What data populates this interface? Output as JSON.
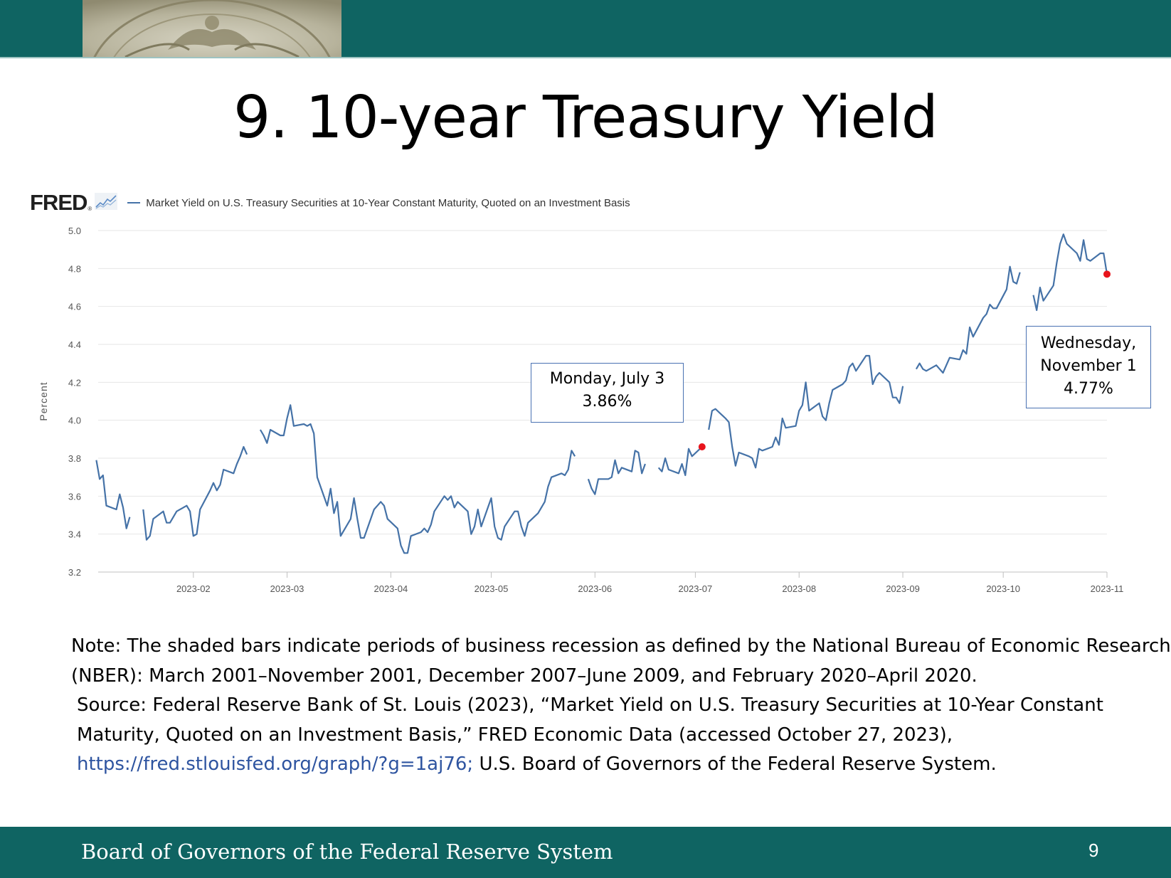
{
  "slide": {
    "title": "9. 10-year Treasury Yield",
    "footer": "Board of Governors of the Federal Reserve System",
    "page_number": "9",
    "band_color": "#0f6462"
  },
  "fred": {
    "logo": "FRED",
    "registered_mark": "®",
    "logo_icon": "sparkline-chart-icon"
  },
  "callouts": {
    "july": {
      "line1": "Monday, July 3",
      "line2": "3.86%"
    },
    "november": {
      "line1": "Wednesday,",
      "line2": "November 1",
      "line3": "4.77%"
    }
  },
  "notes": {
    "note": "Note: The shaded bars indicate periods of business recession as defined by the National Bureau of Economic Research (NBER): March 2001–November 2001, December 2007–June 2009, and February 2020–April 2020.",
    "source_prefix": "Source: Federal Reserve Bank of St. Louis (2023), “Market Yield on U.S. Treasury Securities at 10-Year Constant Maturity, Quoted on an Investment Basis,” FRED Economic Data (accessed October 27, 2023),",
    "source_link": "https://fred.stlouisfed.org/graph/?g=1aj76;",
    "source_suffix": "U.S. Board of Governors of the Federal Reserve System."
  },
  "chart_data": {
    "type": "line",
    "title": "",
    "xlabel": "",
    "ylabel": "Percent",
    "ylim": [
      3.2,
      5.0
    ],
    "yticks": [
      "3.2",
      "3.4",
      "3.6",
      "3.8",
      "4.0",
      "4.2",
      "4.4",
      "4.6",
      "4.8",
      "5.0"
    ],
    "xticks": [
      "2023-02",
      "2023-03",
      "2023-04",
      "2023-05",
      "2023-06",
      "2023-07",
      "2023-08",
      "2023-09",
      "2023-10",
      "2023-11"
    ],
    "xtick_dates": [
      "2023-02-01",
      "2023-03-01",
      "2023-04-01",
      "2023-05-01",
      "2023-06-01",
      "2023-07-01",
      "2023-08-01",
      "2023-09-01",
      "2023-10-01",
      "2023-11-01"
    ],
    "xlim": [
      "2023-01-01",
      "2023-11-01"
    ],
    "grid": true,
    "line_color": "#4572a7",
    "marker_color": "#e8141c",
    "series": [
      {
        "name": "Market Yield on U.S. Treasury Securities at 10-Year Constant Maturity, Quoted on an Investment Basis",
        "segments": [
          [
            [
              "2023-01-03",
              3.79
            ],
            [
              "2023-01-04",
              3.69
            ],
            [
              "2023-01-05",
              3.71
            ],
            [
              "2023-01-06",
              3.55
            ],
            [
              "2023-01-09",
              3.53
            ],
            [
              "2023-01-10",
              3.61
            ],
            [
              "2023-01-11",
              3.54
            ],
            [
              "2023-01-12",
              3.43
            ],
            [
              "2023-01-13",
              3.49
            ]
          ],
          [
            [
              "2023-01-17",
              3.53
            ],
            [
              "2023-01-18",
              3.37
            ],
            [
              "2023-01-19",
              3.39
            ],
            [
              "2023-01-20",
              3.48
            ],
            [
              "2023-01-23",
              3.52
            ],
            [
              "2023-01-24",
              3.46
            ],
            [
              "2023-01-25",
              3.46
            ],
            [
              "2023-01-26",
              3.49
            ],
            [
              "2023-01-27",
              3.52
            ],
            [
              "2023-01-30",
              3.55
            ],
            [
              "2023-01-31",
              3.52
            ],
            [
              "2023-02-01",
              3.39
            ],
            [
              "2023-02-02",
              3.4
            ],
            [
              "2023-02-03",
              3.53
            ],
            [
              "2023-02-06",
              3.63
            ],
            [
              "2023-02-07",
              3.67
            ],
            [
              "2023-02-08",
              3.63
            ],
            [
              "2023-02-09",
              3.66
            ],
            [
              "2023-02-10",
              3.74
            ],
            [
              "2023-02-13",
              3.72
            ],
            [
              "2023-02-14",
              3.77
            ],
            [
              "2023-02-15",
              3.81
            ],
            [
              "2023-02-16",
              3.86
            ],
            [
              "2023-02-17",
              3.82
            ]
          ],
          [
            [
              "2023-02-21",
              3.95
            ],
            [
              "2023-02-22",
              3.92
            ],
            [
              "2023-02-23",
              3.88
            ],
            [
              "2023-02-24",
              3.95
            ],
            [
              "2023-02-27",
              3.92
            ],
            [
              "2023-02-28",
              3.92
            ],
            [
              "2023-03-01",
              4.01
            ],
            [
              "2023-03-02",
              4.08
            ],
            [
              "2023-03-03",
              3.97
            ],
            [
              "2023-03-06",
              3.98
            ],
            [
              "2023-03-07",
              3.97
            ],
            [
              "2023-03-08",
              3.98
            ],
            [
              "2023-03-09",
              3.93
            ],
            [
              "2023-03-10",
              3.7
            ],
            [
              "2023-03-13",
              3.55
            ],
            [
              "2023-03-14",
              3.64
            ],
            [
              "2023-03-15",
              3.51
            ],
            [
              "2023-03-16",
              3.57
            ],
            [
              "2023-03-17",
              3.39
            ],
            [
              "2023-03-20",
              3.48
            ],
            [
              "2023-03-21",
              3.59
            ],
            [
              "2023-03-22",
              3.48
            ],
            [
              "2023-03-23",
              3.38
            ],
            [
              "2023-03-24",
              3.38
            ],
            [
              "2023-03-27",
              3.53
            ],
            [
              "2023-03-28",
              3.55
            ],
            [
              "2023-03-29",
              3.57
            ],
            [
              "2023-03-30",
              3.55
            ],
            [
              "2023-03-31",
              3.48
            ],
            [
              "2023-04-03",
              3.43
            ],
            [
              "2023-04-04",
              3.34
            ],
            [
              "2023-04-05",
              3.3
            ],
            [
              "2023-04-06",
              3.3
            ],
            [
              "2023-04-07",
              3.39
            ],
            [
              "2023-04-10",
              3.41
            ],
            [
              "2023-04-11",
              3.43
            ],
            [
              "2023-04-12",
              3.41
            ],
            [
              "2023-04-13",
              3.45
            ],
            [
              "2023-04-14",
              3.52
            ],
            [
              "2023-04-17",
              3.6
            ],
            [
              "2023-04-18",
              3.58
            ],
            [
              "2023-04-19",
              3.6
            ],
            [
              "2023-04-20",
              3.54
            ],
            [
              "2023-04-21",
              3.57
            ],
            [
              "2023-04-24",
              3.52
            ],
            [
              "2023-04-25",
              3.4
            ],
            [
              "2023-04-26",
              3.44
            ],
            [
              "2023-04-27",
              3.53
            ],
            [
              "2023-04-28",
              3.44
            ],
            [
              "2023-05-01",
              3.59
            ],
            [
              "2023-05-02",
              3.44
            ],
            [
              "2023-05-03",
              3.38
            ],
            [
              "2023-05-04",
              3.37
            ],
            [
              "2023-05-05",
              3.44
            ],
            [
              "2023-05-08",
              3.52
            ],
            [
              "2023-05-09",
              3.52
            ],
            [
              "2023-05-10",
              3.44
            ],
            [
              "2023-05-11",
              3.39
            ],
            [
              "2023-05-12",
              3.46
            ],
            [
              "2023-05-15",
              3.51
            ],
            [
              "2023-05-16",
              3.54
            ],
            [
              "2023-05-17",
              3.57
            ],
            [
              "2023-05-18",
              3.65
            ],
            [
              "2023-05-19",
              3.7
            ],
            [
              "2023-05-22",
              3.72
            ],
            [
              "2023-05-23",
              3.71
            ],
            [
              "2023-05-24",
              3.74
            ],
            [
              "2023-05-25",
              3.84
            ],
            [
              "2023-05-26",
              3.81
            ]
          ],
          [
            [
              "2023-05-30",
              3.69
            ],
            [
              "2023-05-31",
              3.64
            ],
            [
              "2023-06-01",
              3.61
            ],
            [
              "2023-06-02",
              3.69
            ],
            [
              "2023-06-05",
              3.69
            ],
            [
              "2023-06-06",
              3.7
            ],
            [
              "2023-06-07",
              3.79
            ],
            [
              "2023-06-08",
              3.72
            ],
            [
              "2023-06-09",
              3.75
            ],
            [
              "2023-06-12",
              3.73
            ],
            [
              "2023-06-13",
              3.84
            ],
            [
              "2023-06-14",
              3.83
            ],
            [
              "2023-06-15",
              3.72
            ],
            [
              "2023-06-16",
              3.77
            ]
          ],
          [
            [
              "2023-06-20",
              3.75
            ],
            [
              "2023-06-21",
              3.73
            ],
            [
              "2023-06-22",
              3.8
            ],
            [
              "2023-06-23",
              3.74
            ],
            [
              "2023-06-26",
              3.72
            ],
            [
              "2023-06-27",
              3.77
            ],
            [
              "2023-06-28",
              3.71
            ],
            [
              "2023-06-29",
              3.85
            ],
            [
              "2023-06-30",
              3.81
            ],
            [
              "2023-07-03",
              3.86
            ]
          ],
          [
            [
              "2023-07-05",
              3.95
            ],
            [
              "2023-07-06",
              4.05
            ],
            [
              "2023-07-07",
              4.06
            ],
            [
              "2023-07-10",
              4.01
            ],
            [
              "2023-07-11",
              3.99
            ],
            [
              "2023-07-12",
              3.86
            ],
            [
              "2023-07-13",
              3.76
            ],
            [
              "2023-07-14",
              3.83
            ],
            [
              "2023-07-17",
              3.81
            ],
            [
              "2023-07-18",
              3.8
            ],
            [
              "2023-07-19",
              3.75
            ],
            [
              "2023-07-20",
              3.85
            ],
            [
              "2023-07-21",
              3.84
            ],
            [
              "2023-07-24",
              3.86
            ],
            [
              "2023-07-25",
              3.91
            ],
            [
              "2023-07-26",
              3.87
            ],
            [
              "2023-07-27",
              4.01
            ],
            [
              "2023-07-28",
              3.96
            ],
            [
              "2023-07-31",
              3.97
            ],
            [
              "2023-08-01",
              4.05
            ],
            [
              "2023-08-02",
              4.08
            ],
            [
              "2023-08-03",
              4.2
            ],
            [
              "2023-08-04",
              4.05
            ],
            [
              "2023-08-07",
              4.09
            ],
            [
              "2023-08-08",
              4.02
            ],
            [
              "2023-08-09",
              4.0
            ],
            [
              "2023-08-10",
              4.09
            ],
            [
              "2023-08-11",
              4.16
            ],
            [
              "2023-08-14",
              4.19
            ],
            [
              "2023-08-15",
              4.21
            ],
            [
              "2023-08-16",
              4.28
            ],
            [
              "2023-08-17",
              4.3
            ],
            [
              "2023-08-18",
              4.26
            ],
            [
              "2023-08-21",
              4.34
            ],
            [
              "2023-08-22",
              4.34
            ],
            [
              "2023-08-23",
              4.19
            ],
            [
              "2023-08-24",
              4.23
            ],
            [
              "2023-08-25",
              4.25
            ],
            [
              "2023-08-28",
              4.2
            ],
            [
              "2023-08-29",
              4.12
            ],
            [
              "2023-08-30",
              4.12
            ],
            [
              "2023-08-31",
              4.09
            ],
            [
              "2023-09-01",
              4.18
            ]
          ],
          [
            [
              "2023-09-05",
              4.27
            ],
            [
              "2023-09-06",
              4.3
            ],
            [
              "2023-09-07",
              4.27
            ],
            [
              "2023-09-08",
              4.26
            ],
            [
              "2023-09-11",
              4.29
            ],
            [
              "2023-09-12",
              4.27
            ],
            [
              "2023-09-13",
              4.25
            ],
            [
              "2023-09-14",
              4.29
            ],
            [
              "2023-09-15",
              4.33
            ],
            [
              "2023-09-18",
              4.32
            ],
            [
              "2023-09-19",
              4.37
            ],
            [
              "2023-09-20",
              4.35
            ],
            [
              "2023-09-21",
              4.49
            ],
            [
              "2023-09-22",
              4.44
            ],
            [
              "2023-09-25",
              4.54
            ],
            [
              "2023-09-26",
              4.56
            ],
            [
              "2023-09-27",
              4.61
            ],
            [
              "2023-09-28",
              4.59
            ],
            [
              "2023-09-29",
              4.59
            ],
            [
              "2023-10-02",
              4.69
            ],
            [
              "2023-10-03",
              4.81
            ],
            [
              "2023-10-04",
              4.73
            ],
            [
              "2023-10-05",
              4.72
            ],
            [
              "2023-10-06",
              4.78
            ]
          ],
          [
            [
              "2023-10-10",
              4.66
            ],
            [
              "2023-10-11",
              4.58
            ],
            [
              "2023-10-12",
              4.7
            ],
            [
              "2023-10-13",
              4.63
            ],
            [
              "2023-10-16",
              4.71
            ],
            [
              "2023-10-17",
              4.83
            ],
            [
              "2023-10-18",
              4.93
            ],
            [
              "2023-10-19",
              4.98
            ],
            [
              "2023-10-20",
              4.93
            ],
            [
              "2023-10-23",
              4.88
            ],
            [
              "2023-10-24",
              4.84
            ],
            [
              "2023-10-25",
              4.95
            ],
            [
              "2023-10-26",
              4.85
            ],
            [
              "2023-10-27",
              4.84
            ],
            [
              "2023-10-30",
              4.88
            ],
            [
              "2023-10-31",
              4.88
            ],
            [
              "2023-11-01",
              4.77
            ]
          ]
        ]
      }
    ],
    "highlighted_points": [
      {
        "date": "2023-07-03",
        "value": 3.86
      },
      {
        "date": "2023-11-01",
        "value": 4.77
      }
    ]
  }
}
